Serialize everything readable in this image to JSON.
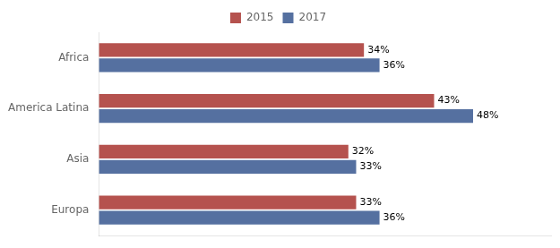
{
  "chart_data": {
    "type": "bar",
    "orientation": "horizontal",
    "categories": [
      "Africa",
      "America Latina",
      "Asia",
      "Europa"
    ],
    "series": [
      {
        "name": "2015",
        "color": "#b5524e",
        "values": [
          34,
          43,
          32,
          33
        ],
        "value_labels": [
          "34%",
          "43%",
          "32%",
          "33%"
        ]
      },
      {
        "name": "2017",
        "color": "#5570a0",
        "values": [
          36,
          48,
          33,
          36
        ],
        "value_labels": [
          "36%",
          "48%",
          "33%",
          "36%"
        ]
      }
    ],
    "xlim": [
      0,
      58
    ],
    "tick_labels": "y",
    "grid": false,
    "legend": "top",
    "data_labels": true
  }
}
